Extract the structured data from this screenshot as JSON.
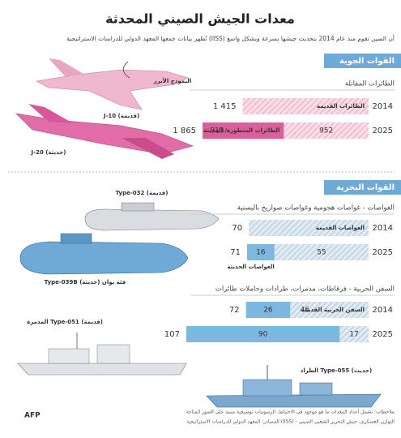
{
  "title": "معدات الجيش الصيني المحدثة",
  "subtitle": "تُظهر بيانات جمعها المعهد الدولي للدراسات الاستراتيجية (IISS) أن الصين تقوم منذ عام 2014 بتحديث جيشها بسرعة وبشكل واسع",
  "sections": [
    {
      "title": "القوات الجوية",
      "groups": [
        {
          "title": "الطائرات المقاتلة",
          "rows": [
            {
              "year": "2014",
              "total": {
                "value": 1415,
                "label": "1 415"
              },
              "segments": [
                {
                  "label": "الطائرات القديمة",
                  "color": "#f6c3d5",
                  "hatched": true
                }
              ]
            },
            {
              "year": "2025",
              "total": {
                "value": 1865,
                "label": "1 865"
              },
              "segments": [
                {
                  "value": 952,
                  "color": "#f6c3d5",
                  "hatched": true
                },
                {
                  "value": 913,
                  "label": "الطائرات المتطورة/ الحديثة",
                  "color": "#d9609a",
                  "hatched": false
                }
              ]
            }
          ]
        }
      ],
      "captions": [
        "النموذج الأبرز",
        "J-10 (قديمة)",
        "J-20 (حديثة)"
      ]
    },
    {
      "title": "القوات البحرية",
      "groups": [
        {
          "title": "الغواصات - غواصات هجومية وغواصات صواريخ باليستية",
          "rows": [
            {
              "year": "2014",
              "total": 70,
              "segments": [
                {
                  "label": "الغواصات القديمة",
                  "color": "#c9dbe8",
                  "hatched": true
                }
              ]
            },
            {
              "year": "2025",
              "total": 71,
              "segments": [
                {
                  "value": 55,
                  "color": "#c9dbe8",
                  "hatched": true
                },
                {
                  "value": 16,
                  "label": "الغواصات الحديثة",
                  "color": "#7db8e0",
                  "hatched": false
                }
              ]
            }
          ]
        },
        {
          "title": "السفن الحربية - فرقاطات، مدمرات، طرادات وحاملات طائرات",
          "rows": [
            {
              "year": "2014",
              "total": 72,
              "segments": [
                {
                  "value": 46,
                  "label": "السفن الحربية القديمة",
                  "color": "#c9dbe8",
                  "hatched": true
                },
                {
                  "value": 26,
                  "color": "#7db8e0",
                  "hatched": false
                }
              ]
            },
            {
              "year": "2025",
              "total": 107,
              "segments": [
                {
                  "value": 17,
                  "color": "#c9dbe8",
                  "hatched": true
                },
                {
                  "value": 90,
                  "color": "#7db8e0",
                  "hatched": false
                }
              ]
            }
          ]
        }
      ],
      "captions": [
        "Type-032 (قديمة)",
        "Type-039B فئة يوان (حديثة)",
        "المدمرة Type-051 (قديمة)",
        "الطراد Type-055 (حديث)"
      ]
    }
  ],
  "notes": "ملاحظات: تشمل أعداد المعدات ما هو موجود في الاحتياط، الرسومات توضيحية مبنية على الصور المتاحة",
  "source": "المصادر: المعهد الدولي للدراسات الاستراتيجية (IISS) - التوازن العسكري، جيش التحرير الشعبي الصيني",
  "logo": "AFP"
}
